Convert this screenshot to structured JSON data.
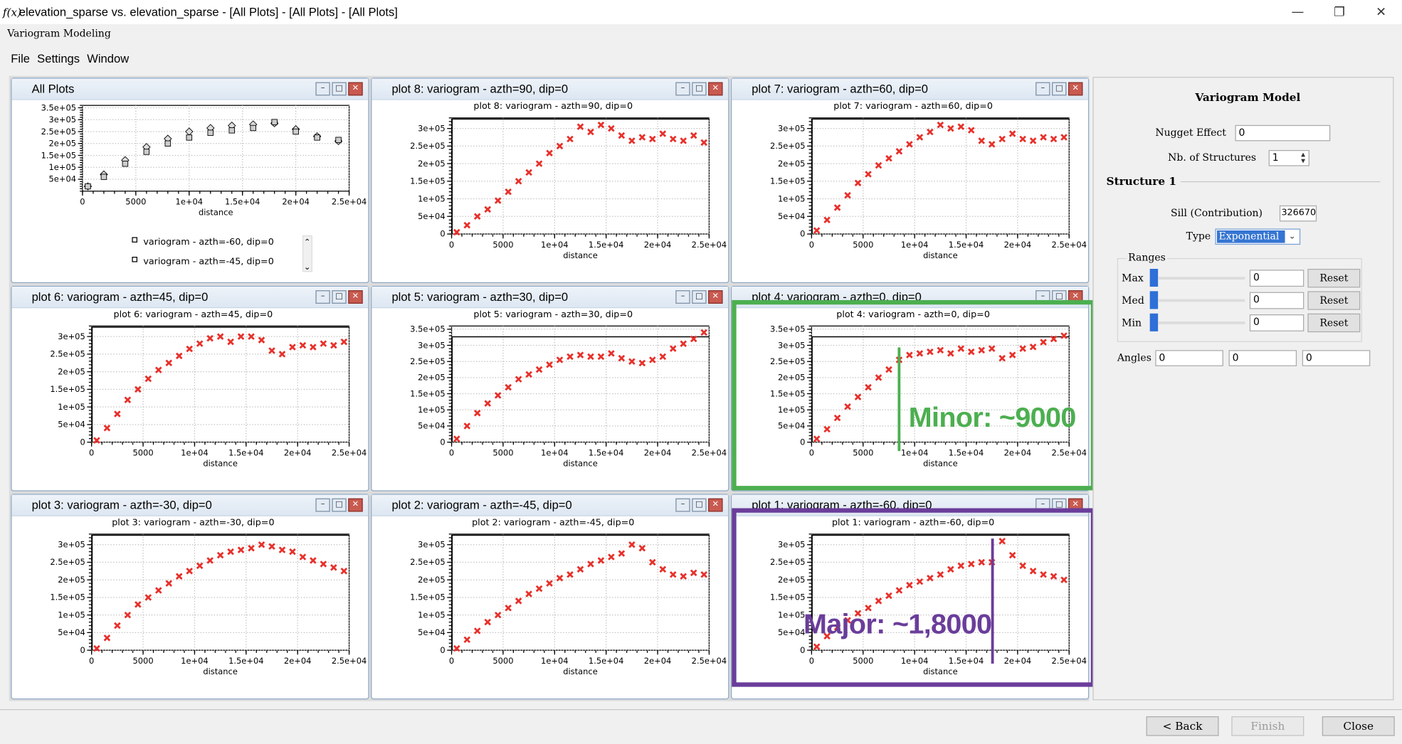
{
  "window": {
    "title": "elevation_sparse vs. elevation_sparse - [All Plots] - [All Plots] - [All Plots]",
    "icon": "f(x)",
    "subtitle": "Variogram Modeling"
  },
  "menu": [
    "File",
    "Settings",
    "Window"
  ],
  "subwindows": {
    "all": {
      "title": "All Plots"
    },
    "p8": {
      "title": "plot 8:  variogram - azth=90, dip=0",
      "inner": "plot 8:  variogram - azth=90, dip=0"
    },
    "p7": {
      "title": "plot 7:  variogram - azth=60, dip=0",
      "inner": "plot 7:  variogram - azth=60, dip=0"
    },
    "p6": {
      "title": "plot 6:  variogram - azth=45, dip=0",
      "inner": "plot 6:  variogram - azth=45, dip=0"
    },
    "p5": {
      "title": "plot 5:  variogram - azth=30, dip=0",
      "inner": "plot 5:  variogram - azth=30, dip=0"
    },
    "p4": {
      "title": "plot 4:  variogram - azth=0, dip=0",
      "inner": "plot 4:  variogram - azth=0, dip=0"
    },
    "p3": {
      "title": "plot 3:  variogram - azth=-30, dip=0",
      "inner": "plot 3:  variogram - azth=-30, dip=0"
    },
    "p2": {
      "title": "plot 2:  variogram - azth=-45, dip=0",
      "inner": "plot 2:  variogram - azth=-45, dip=0"
    },
    "p1": {
      "title": "plot 1:  variogram - azth=-60, dip=0",
      "inner": "plot 1:  variogram - azth=-60, dip=0"
    }
  },
  "all_plots_legend": [
    "variogram - azth=-60, dip=0",
    "variogram - azth=-45, dip=0"
  ],
  "axis": {
    "xlabel": "distance",
    "xticks": [
      "0",
      "5000",
      "1e+04",
      "1.5e+04",
      "2e+04",
      "2.5e+04"
    ],
    "yticks_300": [
      "0",
      "5e+04",
      "1e+05",
      "1.5e+05",
      "2e+05",
      "2.5e+05",
      "3e+05"
    ],
    "yticks_350": [
      "0",
      "5e+04",
      "1e+05",
      "1.5e+05",
      "2e+05",
      "2.5e+05",
      "3e+05",
      "3.5e+05"
    ],
    "yticks_all": [
      "5e+04",
      "1e+05",
      "1.5e+05",
      "2e+05",
      "2.5e+05",
      "3e+05",
      "3.5e+05"
    ]
  },
  "chart_data": [
    {
      "id": "all",
      "type": "scatter",
      "xlabel": "distance",
      "xlim": [
        0,
        25000
      ],
      "ylim": [
        0,
        360000
      ],
      "series": [
        {
          "name": "variogram - azth=-60, dip=0",
          "x": [
            500,
            2000,
            4000,
            6000,
            8000,
            10000,
            12000,
            14000,
            16000,
            18000,
            20000,
            22000,
            24000
          ],
          "y": [
            20000,
            70000,
            130000,
            185000,
            220000,
            250000,
            265000,
            275000,
            280000,
            285000,
            260000,
            230000,
            210000
          ]
        },
        {
          "name": "variogram - azth=-45, dip=0",
          "x": [
            500,
            2000,
            4000,
            6000,
            8000,
            10000,
            12000,
            14000,
            16000,
            18000,
            20000,
            22000,
            24000
          ],
          "y": [
            20000,
            60000,
            115000,
            165000,
            200000,
            225000,
            245000,
            255000,
            265000,
            290000,
            250000,
            225000,
            215000
          ]
        }
      ]
    },
    {
      "id": "p8",
      "type": "scatter",
      "xlabel": "distance",
      "xlim": [
        0,
        25000
      ],
      "ylim": [
        0,
        330000
      ],
      "sill": 326670,
      "x": [
        500,
        1500,
        2500,
        3500,
        4500,
        5500,
        6500,
        7500,
        8500,
        9500,
        10500,
        11500,
        12500,
        13500,
        14500,
        15500,
        16500,
        17500,
        18500,
        19500,
        20500,
        21500,
        22500,
        23500,
        24500
      ],
      "y": [
        5000,
        25000,
        50000,
        70000,
        95000,
        120000,
        150000,
        175000,
        200000,
        230000,
        250000,
        270000,
        305000,
        290000,
        310000,
        300000,
        280000,
        265000,
        275000,
        270000,
        285000,
        270000,
        265000,
        280000,
        260000
      ]
    },
    {
      "id": "p7",
      "type": "scatter",
      "xlabel": "distance",
      "xlim": [
        0,
        25000
      ],
      "ylim": [
        0,
        330000
      ],
      "sill": 326670,
      "x": [
        500,
        1500,
        2500,
        3500,
        4500,
        5500,
        6500,
        7500,
        8500,
        9500,
        10500,
        11500,
        12500,
        13500,
        14500,
        15500,
        16500,
        17500,
        18500,
        19500,
        20500,
        21500,
        22500,
        23500,
        24500
      ],
      "y": [
        10000,
        40000,
        75000,
        110000,
        145000,
        170000,
        195000,
        215000,
        235000,
        255000,
        275000,
        290000,
        310000,
        300000,
        305000,
        295000,
        265000,
        255000,
        270000,
        285000,
        270000,
        265000,
        275000,
        270000,
        275000
      ]
    },
    {
      "id": "p6",
      "type": "scatter",
      "xlabel": "distance",
      "xlim": [
        0,
        25000
      ],
      "ylim": [
        0,
        330000
      ],
      "sill": 326670,
      "x": [
        500,
        1500,
        2500,
        3500,
        4500,
        5500,
        6500,
        7500,
        8500,
        9500,
        10500,
        11500,
        12500,
        13500,
        14500,
        15500,
        16500,
        17500,
        18500,
        19500,
        20500,
        21500,
        22500,
        23500,
        24500
      ],
      "y": [
        5000,
        40000,
        80000,
        120000,
        150000,
        180000,
        205000,
        225000,
        245000,
        265000,
        280000,
        295000,
        300000,
        285000,
        300000,
        300000,
        290000,
        260000,
        250000,
        270000,
        275000,
        270000,
        280000,
        275000,
        285000
      ]
    },
    {
      "id": "p5",
      "type": "scatter",
      "xlabel": "distance",
      "xlim": [
        0,
        25000
      ],
      "ylim": [
        0,
        360000
      ],
      "sill": 326670,
      "x": [
        500,
        1500,
        2500,
        3500,
        4500,
        5500,
        6500,
        7500,
        8500,
        9500,
        10500,
        11500,
        12500,
        13500,
        14500,
        15500,
        16500,
        17500,
        18500,
        19500,
        20500,
        21500,
        22500,
        23500,
        24500
      ],
      "y": [
        10000,
        50000,
        90000,
        120000,
        145000,
        170000,
        195000,
        210000,
        225000,
        240000,
        255000,
        265000,
        270000,
        265000,
        265000,
        275000,
        260000,
        250000,
        245000,
        255000,
        265000,
        290000,
        305000,
        320000,
        340000
      ]
    },
    {
      "id": "p4",
      "type": "scatter",
      "xlabel": "distance",
      "xlim": [
        0,
        25000
      ],
      "ylim": [
        0,
        360000
      ],
      "sill": 326670,
      "x": [
        500,
        1500,
        2500,
        3500,
        4500,
        5500,
        6500,
        7500,
        8500,
        9500,
        10500,
        11500,
        12500,
        13500,
        14500,
        15500,
        16500,
        17500,
        18500,
        19500,
        20500,
        21500,
        22500,
        23500,
        24500
      ],
      "y": [
        10000,
        40000,
        75000,
        110000,
        140000,
        170000,
        200000,
        225000,
        255000,
        270000,
        275000,
        280000,
        285000,
        275000,
        290000,
        280000,
        285000,
        290000,
        260000,
        270000,
        290000,
        295000,
        310000,
        320000,
        330000
      ]
    },
    {
      "id": "p3",
      "type": "scatter",
      "xlabel": "distance",
      "xlim": [
        0,
        25000
      ],
      "ylim": [
        0,
        330000
      ],
      "sill": 326670,
      "x": [
        500,
        1500,
        2500,
        3500,
        4500,
        5500,
        6500,
        7500,
        8500,
        9500,
        10500,
        11500,
        12500,
        13500,
        14500,
        15500,
        16500,
        17500,
        18500,
        19500,
        20500,
        21500,
        22500,
        23500,
        24500
      ],
      "y": [
        5000,
        35000,
        70000,
        100000,
        130000,
        150000,
        170000,
        190000,
        210000,
        225000,
        240000,
        255000,
        270000,
        280000,
        285000,
        290000,
        300000,
        295000,
        285000,
        280000,
        265000,
        255000,
        245000,
        235000,
        225000
      ]
    },
    {
      "id": "p2",
      "type": "scatter",
      "xlabel": "distance",
      "xlim": [
        0,
        25000
      ],
      "ylim": [
        0,
        330000
      ],
      "sill": 326670,
      "x": [
        500,
        1500,
        2500,
        3500,
        4500,
        5500,
        6500,
        7500,
        8500,
        9500,
        10500,
        11500,
        12500,
        13500,
        14500,
        15500,
        16500,
        17500,
        18500,
        19500,
        20500,
        21500,
        22500,
        23500,
        24500
      ],
      "y": [
        5000,
        30000,
        55000,
        80000,
        100000,
        120000,
        140000,
        160000,
        175000,
        190000,
        205000,
        215000,
        230000,
        245000,
        255000,
        265000,
        275000,
        300000,
        290000,
        250000,
        230000,
        215000,
        210000,
        220000,
        215000
      ]
    },
    {
      "id": "p1",
      "type": "scatter",
      "xlabel": "distance",
      "xlim": [
        0,
        25000
      ],
      "ylim": [
        0,
        330000
      ],
      "sill": 326670,
      "x": [
        500,
        1500,
        2500,
        3500,
        4500,
        5500,
        6500,
        7500,
        8500,
        9500,
        10500,
        11500,
        12500,
        13500,
        14500,
        15500,
        16500,
        17500,
        18500,
        19500,
        20500,
        21500,
        22500,
        23500,
        24500
      ],
      "y": [
        10000,
        40000,
        65000,
        85000,
        105000,
        120000,
        140000,
        155000,
        170000,
        185000,
        195000,
        205000,
        215000,
        230000,
        240000,
        245000,
        250000,
        250000,
        310000,
        270000,
        240000,
        225000,
        215000,
        210000,
        200000
      ]
    }
  ],
  "panel": {
    "title": "Variogram Model",
    "nugget_label": "Nugget Effect",
    "nugget_value": "0",
    "nb_structures_label": "Nb. of Structures",
    "nb_structures_value": "1",
    "structure_title": "Structure 1",
    "sill_label": "Sill (Contribution)",
    "sill_value": "326670",
    "type_label": "Type",
    "type_value": "Exponential",
    "ranges_title": "Ranges",
    "max_label": "Max",
    "med_label": "Med",
    "min_label": "Min",
    "max_value": "0",
    "med_value": "0",
    "min_value": "0",
    "reset": "Reset",
    "angles_label": "Angles",
    "angle1": "0",
    "angle2": "0",
    "angle3": "0",
    "slider_max": 0,
    "slider_med": 0,
    "slider_min": 0
  },
  "annotations": {
    "minor_label": "Minor: ~9000",
    "minor_color": "#4caf50",
    "major_label": "Major: ~1,8000",
    "major_color": "#6a3d9a"
  },
  "footer": {
    "back": "< Back",
    "finish": "Finish",
    "close": "Close"
  }
}
